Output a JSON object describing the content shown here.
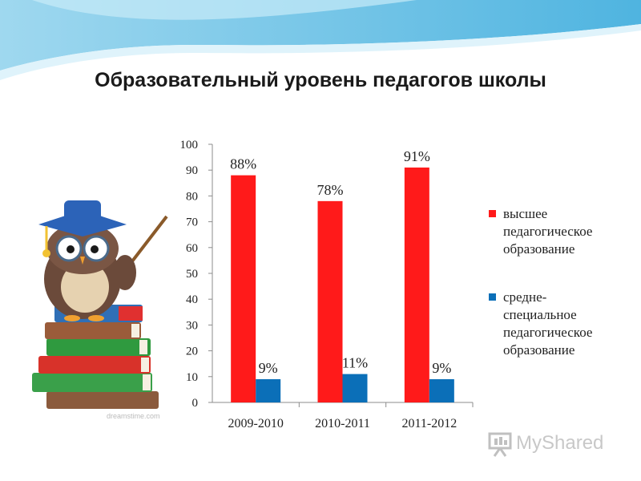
{
  "title": "Образовательный уровень педагогов школы",
  "colors": {
    "series1": "#ff1a1a",
    "series2": "#0b6fb8",
    "header_wave": "#6fc3e6"
  },
  "watermark": {
    "text": "MyShared",
    "icon": "presentation-board-icon"
  },
  "illustration": {
    "icon": "owl-teacher-on-books-icon",
    "stamp_text": "dreamstime.com"
  },
  "chart_data": {
    "type": "bar",
    "categories": [
      "2009-2010",
      "2010-2011",
      "2011-2012"
    ],
    "ylim": [
      0,
      100
    ],
    "yticks": [
      0,
      10,
      20,
      30,
      40,
      50,
      60,
      70,
      80,
      90,
      100
    ],
    "grid": false,
    "legend_position": "right",
    "series": [
      {
        "name": "высшее педагогическое образование",
        "color": "#ff1a1a",
        "values": [
          88,
          78,
          91
        ],
        "labels": [
          "88%",
          "78%",
          "91%"
        ]
      },
      {
        "name": "средне-специальное педагогическое образование",
        "color": "#0b6fb8",
        "values": [
          9,
          11,
          9
        ],
        "labels": [
          "9%",
          "11%",
          "9%"
        ]
      }
    ]
  },
  "legend": {
    "items": [
      {
        "lines": [
          "высшее",
          "педагогическое",
          "образование"
        ]
      },
      {
        "lines": [
          "средне-",
          "специальное",
          "педагогическое",
          "образование"
        ]
      }
    ]
  }
}
